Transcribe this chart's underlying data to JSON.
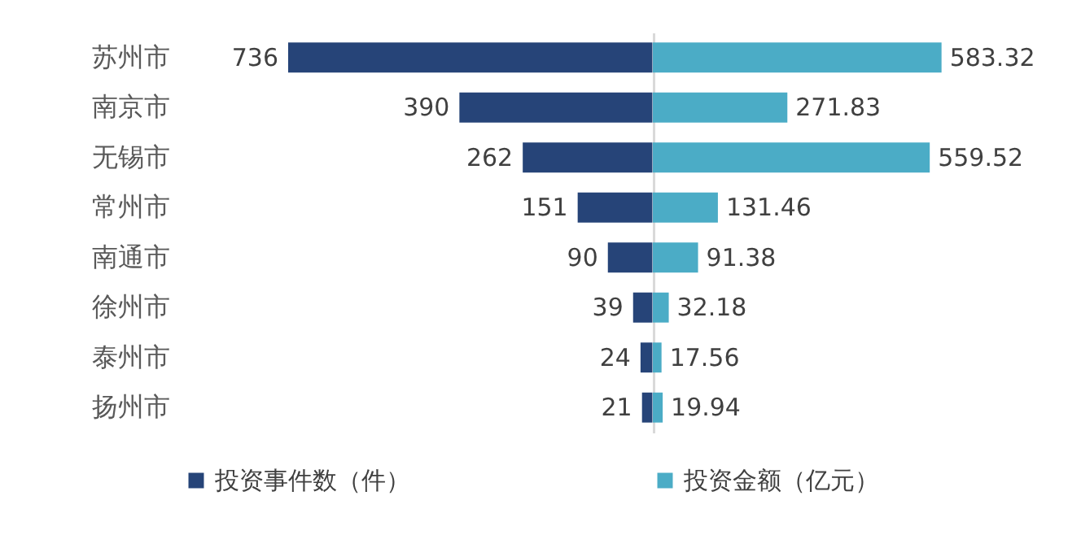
{
  "chart_data": [
    {
      "type": "bar",
      "orientation": "horizontal",
      "categories": [
        "苏州市",
        "南京市",
        "无锡市",
        "常州市",
        "南通市",
        "徐州市",
        "泰州市",
        "扬州市"
      ],
      "series": [
        {
          "name": "投资事件数（件）",
          "color": "#264478",
          "values": [
            736,
            390,
            262,
            151,
            90,
            39,
            24,
            21
          ]
        }
      ],
      "data_labels": true,
      "legend": "bottom",
      "tick_labels": "y"
    },
    {
      "type": "bar",
      "orientation": "horizontal",
      "series": [
        {
          "name": "投资金额（亿元）",
          "color": "#4bacc6",
          "values": [
            583.32,
            271.83,
            559.52,
            131.46,
            91.38,
            32.18,
            17.56,
            19.94
          ]
        }
      ],
      "data_labels": true,
      "legend": "bottom",
      "tick_labels": false
    }
  ]
}
